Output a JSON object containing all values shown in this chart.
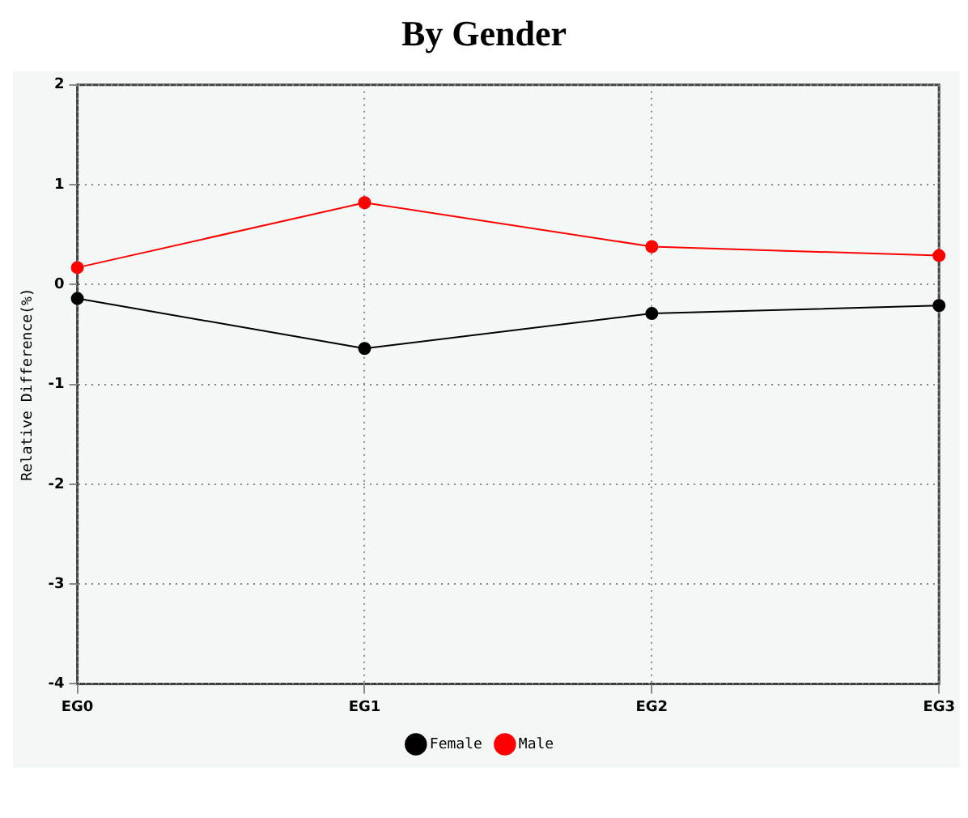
{
  "chart_data": {
    "type": "line",
    "title": "By Gender",
    "ylabel": "Relative Difference(%)",
    "categories": [
      "EG0",
      "EG1",
      "EG2",
      "EG3"
    ],
    "series": [
      {
        "name": "Female",
        "color": "#000000",
        "values": [
          -0.14,
          -0.64,
          -0.29,
          -0.21
        ]
      },
      {
        "name": "Male",
        "color": "#ff0000",
        "values": [
          0.17,
          0.82,
          0.38,
          0.29
        ]
      }
    ],
    "ylim": [
      -4,
      2
    ],
    "yticks": [
      -4,
      -3,
      -2,
      -1,
      0,
      1,
      2
    ],
    "grid": true,
    "legend": "bottom",
    "marker": "circle",
    "line_style": "solid"
  }
}
